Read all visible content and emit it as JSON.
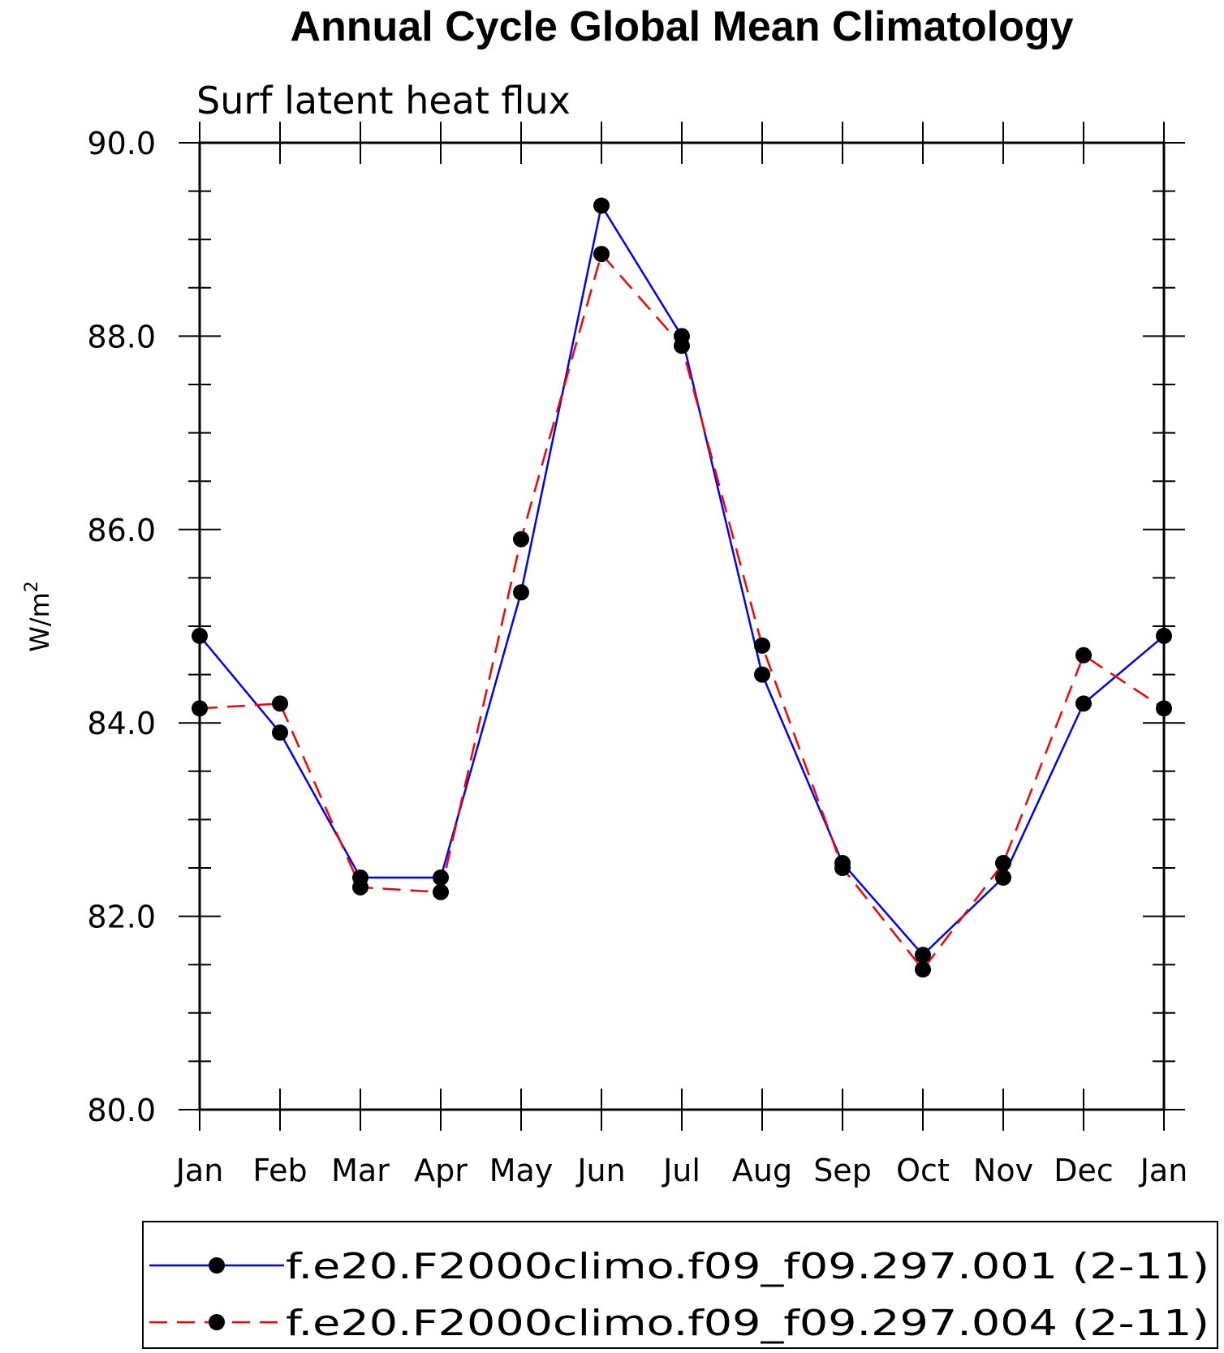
{
  "chart_data": {
    "type": "line",
    "title": "Annual Cycle Global Mean Climatology",
    "subtitle": "Surf latent heat flux",
    "ylabel": "W/m",
    "ylabel_sup": "2",
    "xlabel": "",
    "categories": [
      "Jan",
      "Feb",
      "Mar",
      "Apr",
      "May",
      "Jun",
      "Jul",
      "Aug",
      "Sep",
      "Oct",
      "Nov",
      "Dec",
      "Jan"
    ],
    "ylim": [
      80.0,
      90.0
    ],
    "yticks": [
      "80.0",
      "82.0",
      "84.0",
      "86.0",
      "88.0",
      "90.0"
    ],
    "grid": false,
    "legend_position": "bottom",
    "series": [
      {
        "name": "f.e20.F2000climo.f09_f09.297.001 (2-11)",
        "color": "#0000ff",
        "dash": "solid",
        "values": [
          84.9,
          83.9,
          82.4,
          82.4,
          85.35,
          89.35,
          88.0,
          84.5,
          82.55,
          81.6,
          82.4,
          84.2,
          84.9
        ]
      },
      {
        "name": "f.e20.F2000climo.f09_f09.297.004 (2-11)",
        "color": "#ff0000",
        "dash": "dashed",
        "values": [
          84.15,
          84.2,
          82.3,
          82.25,
          85.9,
          88.85,
          87.9,
          84.8,
          82.5,
          81.45,
          82.55,
          84.7,
          84.15
        ]
      }
    ]
  }
}
